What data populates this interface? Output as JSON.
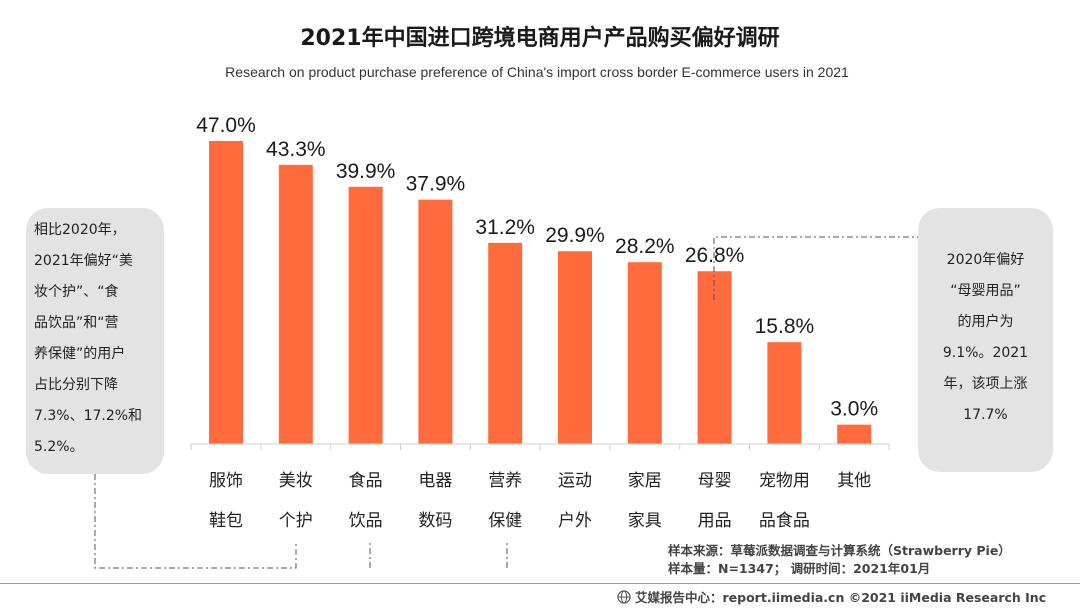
{
  "chart_data": {
    "type": "bar",
    "title": "2021年中国进口跨境电商用户产品购买偏好调研",
    "subtitle": "Research on product purchase preference of China's import cross border E-commerce users in 2021",
    "categories": [
      [
        "服饰",
        "鞋包"
      ],
      [
        "美妆",
        "个护"
      ],
      [
        "食品",
        "饮品"
      ],
      [
        "电器",
        "数码"
      ],
      [
        "营养",
        "保健"
      ],
      [
        "运动",
        "户外"
      ],
      [
        "家居",
        "家具"
      ],
      [
        "母婴",
        "用品"
      ],
      [
        "宠物用",
        "品食品"
      ],
      [
        "其他"
      ]
    ],
    "values": [
      47.0,
      43.3,
      39.9,
      37.9,
      31.2,
      29.9,
      28.2,
      26.8,
      15.8,
      3.0
    ],
    "value_labels": [
      "47.0%",
      "43.3%",
      "39.9%",
      "37.9%",
      "31.2%",
      "29.9%",
      "28.2%",
      "26.8%",
      "15.8%",
      "3.0%"
    ],
    "ylim": [
      0,
      47.0
    ],
    "xlabel": "",
    "ylabel": "",
    "unit": "%",
    "bar_color": "#ff6b3d",
    "grid": false,
    "legend": "none"
  },
  "annotations": {
    "left_note": [
      "相比2020年，",
      "2021年偏好“美",
      "妆个护”、“食",
      "品饮品”和“营",
      "养保健”的用户",
      "占比分别下降",
      "7.3%、17.2%和",
      "5.2%。"
    ],
    "right_note": [
      "2020年偏好",
      "“母婴用品”",
      "的用户为",
      "9.1%。2021",
      "年，该项上涨",
      "17.7%"
    ]
  },
  "source": {
    "line1": "样本来源：草莓派数据调查与计算系统（Strawberry Pie）",
    "line2": "样本量：N=1347； 调研时间：2021年01月"
  },
  "footer": {
    "text": "艾媒报告中心：report.iimedia.cn  ©2021  iiMedia Research Inc",
    "icon": "globe-icon"
  },
  "colors": {
    "bar": "#ff6b3d",
    "note_bg": "#e3e3e3",
    "text": "#1a1a1a"
  }
}
